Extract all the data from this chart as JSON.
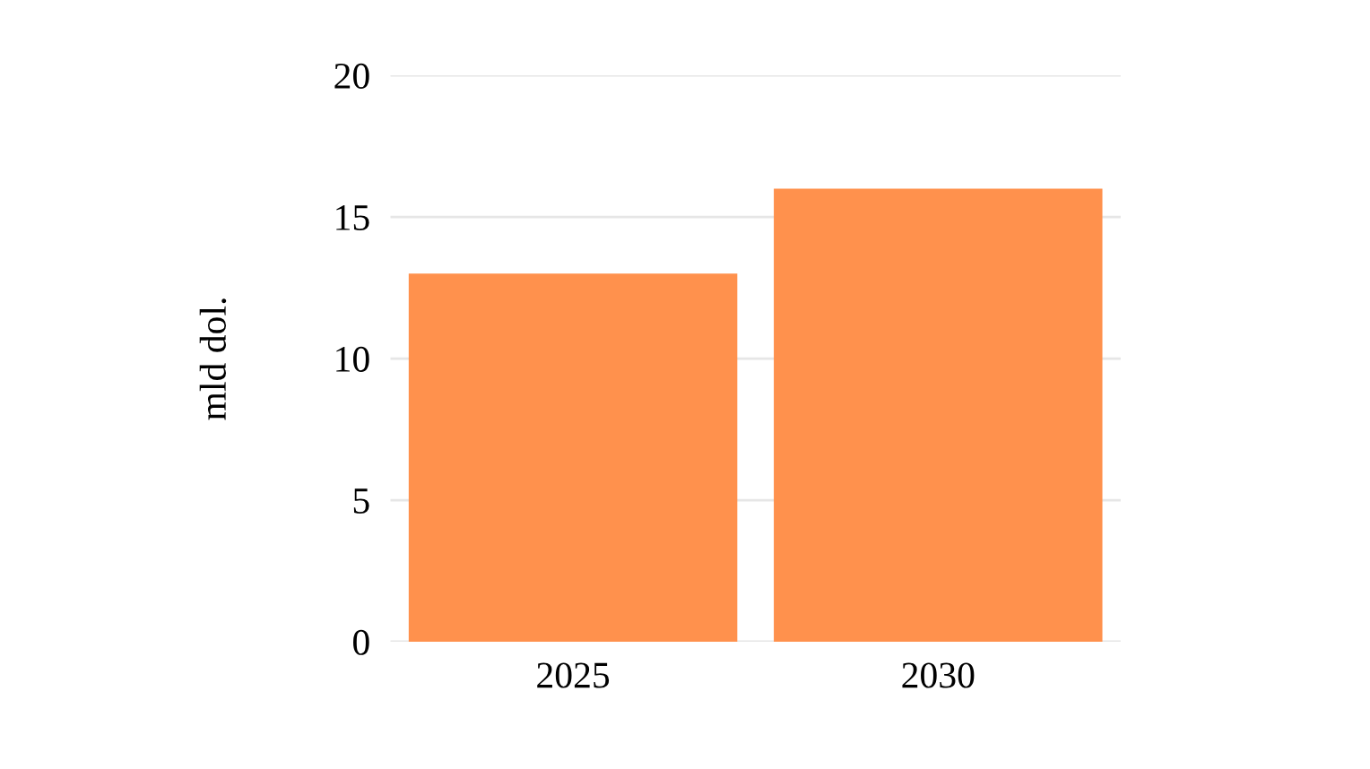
{
  "chart_data": {
    "type": "bar",
    "ylabel": "mld dol.",
    "categories": [
      "2025",
      "2030"
    ],
    "values": [
      13,
      16
    ],
    "color": "#ff914d",
    "ylim": [
      0,
      20
    ],
    "yticks": [
      0,
      5,
      10,
      15,
      20
    ],
    "grid": "y"
  }
}
